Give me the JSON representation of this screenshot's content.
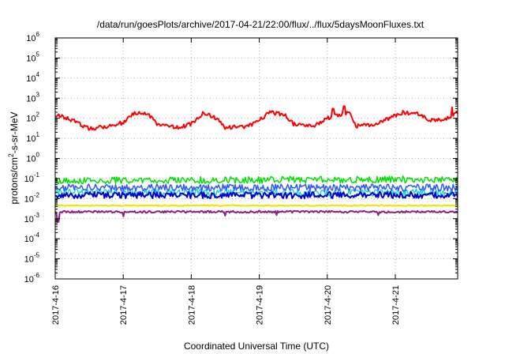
{
  "chart_data": {
    "type": "line",
    "title": "/data/run/goesPlots/archive/2017-04-21/22:00/flux/../flux/5daysMoonFluxes.txt",
    "xlabel": "Coordinated Universal Time (UTC)",
    "ylabel": {
      "pre": "protons/cm",
      "sup": "2",
      "post": "-s-sr-MeV"
    },
    "yscale": "log",
    "ylim": [
      1e-06,
      1000000.0
    ],
    "xlim": [
      "2017-04-16T00:00",
      "2017-04-21T22:00"
    ],
    "grid": true,
    "x_ticks": [
      "2017-4-16",
      "2017-4-17",
      "2017-4-18",
      "2017-4-19",
      "2017-4-20",
      "2017-4-21"
    ],
    "y_ticks": [
      {
        "base": "10",
        "exp": "6"
      },
      {
        "base": "10",
        "exp": "5"
      },
      {
        "base": "10",
        "exp": "4"
      },
      {
        "base": "10",
        "exp": "3"
      },
      {
        "base": "10",
        "exp": "2"
      },
      {
        "base": "10",
        "exp": "1"
      },
      {
        "base": "10",
        "exp": "0"
      },
      {
        "base": "10",
        "exp": "-1"
      },
      {
        "base": "10",
        "exp": "-2"
      },
      {
        "base": "10",
        "exp": "-3"
      },
      {
        "base": "10",
        "exp": "-4"
      },
      {
        "base": "10",
        "exp": "-5"
      },
      {
        "base": "10",
        "exp": "-6"
      }
    ],
    "series": [
      {
        "color": "#ff0000",
        "lw": 2,
        "noise": 0.1,
        "seed": 1,
        "knots": [
          [
            "2017-04-16T00:00",
            150
          ],
          [
            "2017-04-16T06:00",
            80
          ],
          [
            "2017-04-16T12:00",
            30
          ],
          [
            "2017-04-16T18:00",
            40
          ],
          [
            "2017-04-17T00:00",
            60
          ],
          [
            "2017-04-17T04:00",
            200
          ],
          [
            "2017-04-17T09:00",
            150
          ],
          [
            "2017-04-17T12:00",
            50
          ],
          [
            "2017-04-17T20:00",
            35
          ],
          [
            "2017-04-18T00:00",
            50
          ],
          [
            "2017-04-18T04:00",
            180
          ],
          [
            "2017-04-18T09:00",
            100
          ],
          [
            "2017-04-18T12:00",
            35
          ],
          [
            "2017-04-18T20:00",
            40
          ],
          [
            "2017-04-19T00:00",
            80
          ],
          [
            "2017-04-19T04:00",
            200
          ],
          [
            "2017-04-19T09:00",
            150
          ],
          [
            "2017-04-19T12:00",
            50
          ],
          [
            "2017-04-19T20:00",
            45
          ],
          [
            "2017-04-20T00:00",
            100
          ],
          [
            "2017-04-20T04:00",
            150
          ],
          [
            "2017-04-20T08:00",
            200
          ],
          [
            "2017-04-20T10:00",
            40
          ],
          [
            "2017-04-20T16:00",
            50
          ],
          [
            "2017-04-20T22:00",
            100
          ],
          [
            "2017-04-21T03:00",
            200
          ],
          [
            "2017-04-21T09:00",
            150
          ],
          [
            "2017-04-21T12:00",
            80
          ],
          [
            "2017-04-21T18:00",
            90
          ],
          [
            "2017-04-21T22:00",
            200
          ]
        ],
        "spikes": [
          [
            "2017-04-20T02:00",
            300
          ],
          [
            "2017-04-20T06:00",
            400
          ],
          [
            "2017-04-21T20:00",
            350
          ]
        ]
      },
      {
        "color": "#00e000",
        "lw": 1.5,
        "noise": 0.17,
        "seed": 2,
        "knots": [
          [
            "2017-04-16T00:00",
            0.08
          ],
          [
            "2017-04-21T22:00",
            0.09
          ]
        ],
        "spikes": []
      },
      {
        "color": "#00d8d8",
        "lw": 1.3,
        "noise": 0.18,
        "seed": 3,
        "knots": [
          [
            "2017-04-16T00:00",
            0.02
          ],
          [
            "2017-04-21T22:00",
            0.02
          ]
        ],
        "spikes": []
      },
      {
        "color": "#3355ff",
        "lw": 1.5,
        "noise": 0.18,
        "seed": 4,
        "knots": [
          [
            "2017-04-16T00:00",
            0.035
          ],
          [
            "2017-04-21T22:00",
            0.035
          ]
        ],
        "spikes": []
      },
      {
        "color": "#0000cc",
        "lw": 2,
        "noise": 0.16,
        "seed": 5,
        "knots": [
          [
            "2017-04-16T00:00",
            0.015
          ],
          [
            "2017-04-21T22:00",
            0.015
          ]
        ],
        "spikes": []
      },
      {
        "color": "#e8e800",
        "lw": 2,
        "noise": 0.03,
        "seed": 6,
        "knots": [
          [
            "2017-04-16T00:00",
            0.0045
          ],
          [
            "2017-04-21T22:00",
            0.0045
          ]
        ],
        "spikes": []
      },
      {
        "color": "#8b2080",
        "lw": 2,
        "noise": 0.05,
        "seed": 7,
        "knots": [
          [
            "2017-04-16T00:00",
            0.0022
          ],
          [
            "2017-04-21T22:00",
            0.0022
          ]
        ],
        "spikes": [
          [
            "2017-04-16T01:00",
            0.0007
          ],
          [
            "2017-04-17T00:00",
            0.0013
          ],
          [
            "2017-04-18T12:00",
            0.0014
          ],
          [
            "2017-04-19T06:00",
            0.0015
          ],
          [
            "2017-04-20T18:00",
            0.0015
          ]
        ]
      }
    ]
  }
}
